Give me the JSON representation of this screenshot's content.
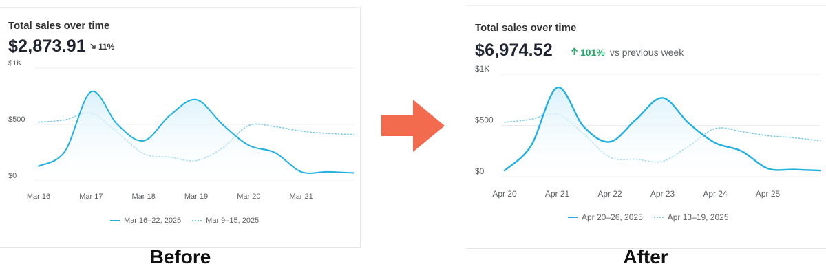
{
  "colors": {
    "series_primary": "#22b0e0",
    "series_comparison": "#7fcbe8",
    "fill_top": "#d9f1fb",
    "grid": "#ececec",
    "arrow": "#f26b4f",
    "increase": "#1faa6a"
  },
  "arrow_icon": "arrow-right-icon",
  "captions": {
    "before": "Before",
    "after": "After"
  },
  "chart_data": [
    {
      "type": "area",
      "title": "Total sales over time",
      "total": "$2,873.91",
      "change": {
        "direction": "down",
        "icon": "arrow-down-right-icon",
        "percent": "11%"
      },
      "y_tick_labels": [
        "$1K",
        "$500",
        "$0"
      ],
      "y_ticks": [
        1000,
        500,
        0
      ],
      "ylim": [
        0,
        1000
      ],
      "x_tick_labels": [
        "Mar 16",
        "Mar 17",
        "Mar 18",
        "Mar 19",
        "Mar 20",
        "Mar 21"
      ],
      "x": [
        0,
        0.5,
        1,
        1.5,
        2,
        2.5,
        3,
        3.5,
        4,
        4.5,
        5,
        5.5,
        6
      ],
      "grid": true,
      "legend_placement": "bottom",
      "series": [
        {
          "name": "Mar 16–22, 2025",
          "style": "solid",
          "values": [
            130,
            260,
            790,
            500,
            355,
            580,
            720,
            500,
            315,
            250,
            80,
            80,
            70
          ]
        },
        {
          "name": "Mar 9–15, 2025",
          "style": "dotted",
          "values": [
            520,
            540,
            600,
            430,
            240,
            210,
            180,
            290,
            490,
            480,
            440,
            420,
            410
          ]
        }
      ]
    },
    {
      "type": "area",
      "title": "Total sales over time",
      "total": "$6,974.52",
      "change": {
        "direction": "up",
        "icon": "arrow-up-icon",
        "percent": "101%",
        "label": "vs previous week"
      },
      "y_tick_labels": [
        "$1K",
        "$500",
        "$0"
      ],
      "y_ticks": [
        1000,
        500,
        0
      ],
      "ylim": [
        0,
        1000
      ],
      "x_tick_labels": [
        "Apr 20",
        "Apr 21",
        "Apr 22",
        "Apr 23",
        "Apr 24",
        "Apr 25"
      ],
      "x": [
        0,
        0.5,
        1,
        1.5,
        2,
        2.5,
        3,
        3.5,
        4,
        4.5,
        5,
        5.5,
        6
      ],
      "grid": true,
      "legend_placement": "bottom",
      "series": [
        {
          "name": "Apr 20–26, 2025",
          "style": "solid",
          "values": [
            60,
            300,
            870,
            490,
            340,
            560,
            770,
            520,
            330,
            250,
            80,
            70,
            60
          ]
        },
        {
          "name": "Apr 13–19, 2025",
          "style": "dotted",
          "values": [
            530,
            560,
            610,
            420,
            190,
            170,
            150,
            300,
            470,
            440,
            400,
            380,
            350
          ]
        }
      ]
    }
  ]
}
